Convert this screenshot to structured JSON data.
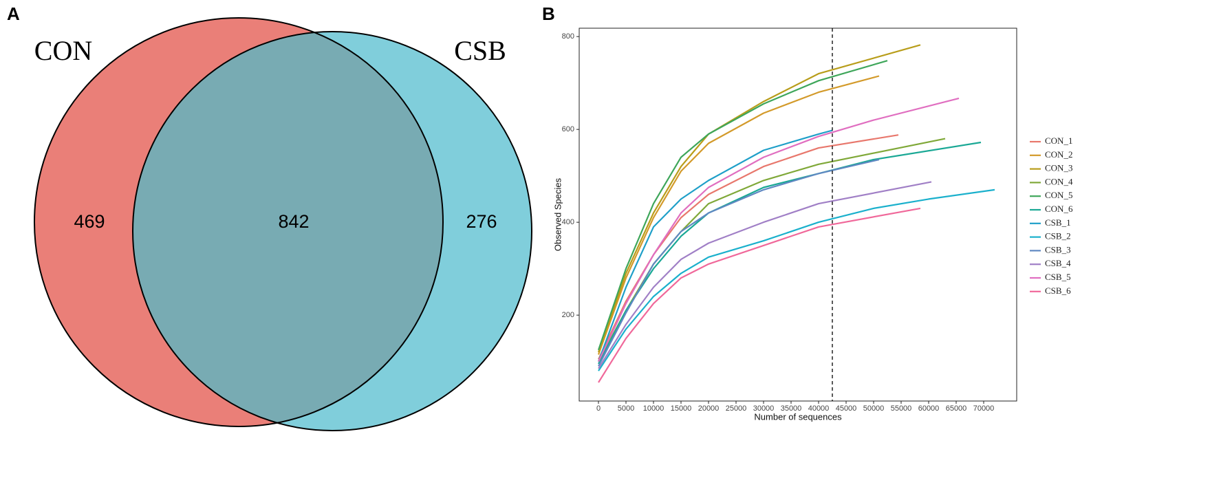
{
  "chart_data": [
    {
      "type": "venn",
      "panel": "A",
      "sets": [
        {
          "name": "CON",
          "color": "#ea7f78"
        },
        {
          "name": "CSB",
          "color": "#80cedb"
        }
      ],
      "overlap_color": "#78abb3",
      "values": [
        469,
        842,
        276
      ]
    },
    {
      "type": "line",
      "panel": "B",
      "xlabel": "Number of sequences",
      "ylabel": "Observed Species",
      "xlim": [
        -3500,
        76000
      ],
      "ylim": [
        15,
        818
      ],
      "xticks": [
        0,
        5000,
        10000,
        15000,
        20000,
        25000,
        30000,
        35000,
        40000,
        45000,
        50000,
        55000,
        60000,
        65000,
        70000
      ],
      "yticks": [
        200,
        400,
        600,
        800
      ],
      "vline": 42500,
      "legend": "right",
      "series": [
        {
          "name": "CON_1",
          "color": "#e8776c",
          "x": [
            0,
            5000,
            10000,
            15000,
            20000,
            30000,
            40000,
            54500
          ],
          "values": [
            105,
            230,
            330,
            410,
            460,
            520,
            560,
            588
          ]
        },
        {
          "name": "CON_2",
          "color": "#d39a2a",
          "x": [
            0,
            5000,
            10000,
            15000,
            20000,
            30000,
            40000,
            51000
          ],
          "values": [
            115,
            280,
            410,
            510,
            570,
            635,
            680,
            715
          ]
        },
        {
          "name": "CON_3",
          "color": "#b89d1a",
          "x": [
            0,
            5000,
            10000,
            15000,
            20000,
            30000,
            40000,
            58500
          ],
          "values": [
            120,
            290,
            420,
            520,
            590,
            660,
            720,
            782
          ]
        },
        {
          "name": "CON_4",
          "color": "#7fa838",
          "x": [
            0,
            5000,
            10000,
            15000,
            20000,
            30000,
            40000,
            63000
          ],
          "values": [
            100,
            210,
            310,
            380,
            440,
            490,
            525,
            580
          ]
        },
        {
          "name": "CON_5",
          "color": "#3ea65a",
          "x": [
            0,
            5000,
            10000,
            15000,
            20000,
            30000,
            40000,
            52500
          ],
          "values": [
            125,
            300,
            440,
            540,
            590,
            655,
            705,
            748
          ]
        },
        {
          "name": "CON_6",
          "color": "#1aa895",
          "x": [
            0,
            5000,
            10000,
            15000,
            20000,
            30000,
            40000,
            50000,
            69500
          ],
          "values": [
            95,
            210,
            300,
            370,
            420,
            475,
            505,
            535,
            572
          ]
        },
        {
          "name": "CSB_1",
          "color": "#1e9fc8",
          "x": [
            0,
            5000,
            10000,
            15000,
            20000,
            30000,
            40000,
            42500
          ],
          "values": [
            100,
            260,
            390,
            450,
            490,
            555,
            590,
            598
          ]
        },
        {
          "name": "CSB_2",
          "color": "#1ab0cc",
          "x": [
            0,
            5000,
            10000,
            15000,
            20000,
            30000,
            40000,
            50000,
            60000,
            72000
          ],
          "values": [
            80,
            170,
            240,
            290,
            325,
            360,
            400,
            430,
            450,
            470
          ]
        },
        {
          "name": "CSB_3",
          "color": "#5f88c2",
          "x": [
            0,
            5000,
            10000,
            15000,
            20000,
            30000,
            40000,
            51000
          ],
          "values": [
            90,
            205,
            310,
            380,
            420,
            470,
            505,
            535
          ]
        },
        {
          "name": "CSB_4",
          "color": "#a07fc6",
          "x": [
            0,
            5000,
            10000,
            15000,
            20000,
            30000,
            40000,
            60500
          ],
          "values": [
            85,
            180,
            260,
            320,
            355,
            400,
            440,
            487
          ]
        },
        {
          "name": "CSB_5",
          "color": "#e06ec0",
          "x": [
            0,
            5000,
            10000,
            15000,
            20000,
            30000,
            40000,
            50000,
            65500
          ],
          "values": [
            100,
            225,
            330,
            420,
            475,
            540,
            585,
            620,
            667
          ]
        },
        {
          "name": "CSB_6",
          "color": "#f0689a",
          "x": [
            0,
            5000,
            10000,
            15000,
            20000,
            30000,
            40000,
            58500
          ],
          "values": [
            55,
            150,
            225,
            280,
            310,
            350,
            390,
            430
          ]
        }
      ]
    }
  ]
}
